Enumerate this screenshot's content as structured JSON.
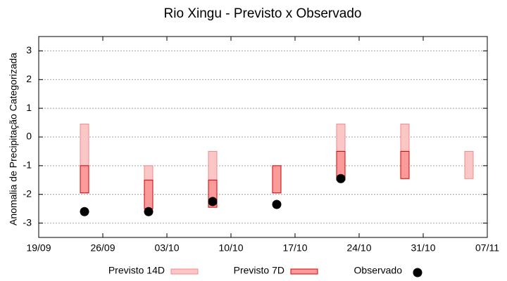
{
  "chart_data": {
    "type": "range",
    "title": "Rio Xingu - Previsto x Observado",
    "y_label": "Anomalia de Precipitação Categorizada",
    "x": [
      "24/09",
      "01/10",
      "08/10",
      "15/10",
      "22/10",
      "29/10",
      "05/11"
    ],
    "xlim": [
      "19/09",
      "07/11"
    ],
    "xticks": [
      "19/09",
      "26/09",
      "03/10",
      "10/10",
      "17/10",
      "24/10",
      "31/10",
      "07/11"
    ],
    "ylim": [
      -3.5,
      3.5
    ],
    "yticks": [
      -3,
      -2,
      -1,
      0,
      1,
      2,
      3
    ],
    "grid": true,
    "series": [
      {
        "name": "Previsto 14D",
        "color": "#fbc6c6",
        "stroke": "#f08a8a",
        "low": [
          -1,
          -2.5,
          -1.5,
          null,
          -0.5,
          -0.5,
          -1.45
        ],
        "high": [
          0.45,
          -1,
          -0.5,
          null,
          0.45,
          0.45,
          -0.5
        ]
      },
      {
        "name": "Previsto 7D",
        "color": "#fa9a9a",
        "stroke": "#d40000",
        "low": [
          -1.95,
          -2.5,
          -2.45,
          -1.95,
          -1.5,
          -1.45,
          null
        ],
        "high": [
          -1,
          -1.5,
          -1.5,
          -1,
          -0.5,
          -0.5,
          null
        ]
      },
      {
        "name": "Observado",
        "color": "#000000",
        "values": [
          -2.6,
          -2.6,
          -2.25,
          -2.35,
          -1.45,
          null,
          null
        ]
      }
    ]
  }
}
